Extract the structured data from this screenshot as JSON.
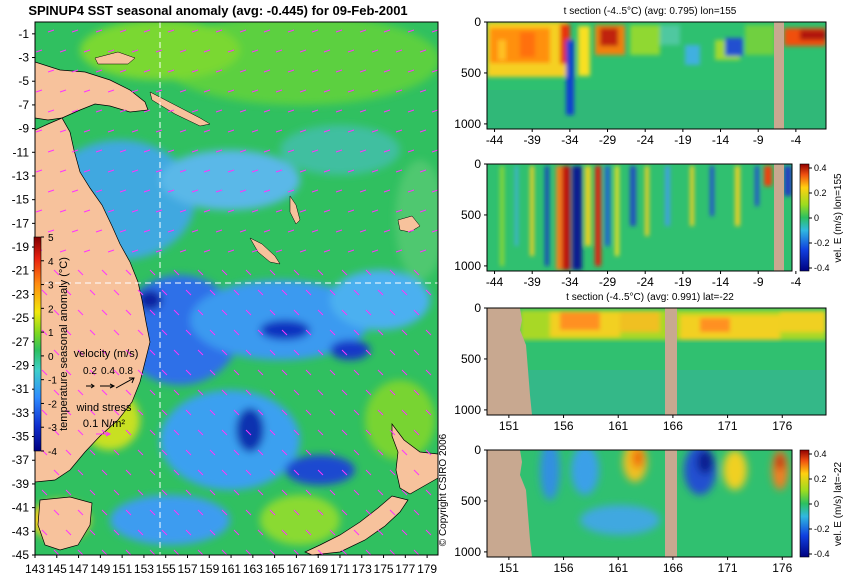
{
  "figure": {
    "copyright": "© Copyright CSIRO 2006"
  },
  "chart_data": [
    {
      "type": "heatmap",
      "id": "map",
      "title": "SPINUP4 SST seasonal anomaly (avg: -0.445) for 09-Feb-2001",
      "x_ticks": [
        "143",
        "145",
        "147",
        "149",
        "151",
        "153",
        "155",
        "157",
        "159",
        "161",
        "163",
        "165",
        "167",
        "169",
        "171",
        "173",
        "175",
        "177",
        "179"
      ],
      "y_ticks": [
        "-1",
        "-3",
        "-5",
        "-7",
        "-9",
        "-11",
        "-13",
        "-15",
        "-17",
        "-19",
        "-21",
        "-23",
        "-25",
        "-27",
        "-29",
        "-31",
        "-33",
        "-35",
        "-37",
        "-39",
        "-41",
        "-43",
        "-45"
      ],
      "xlim": [
        143,
        180
      ],
      "ylim": [
        -45,
        0
      ],
      "crosshair": {
        "lon": 155,
        "lat": -22
      },
      "colorbar": {
        "label": "temperature seasonal anomaly (°C)",
        "ticks": [
          "5",
          "4",
          "3",
          "2",
          "1",
          "0",
          "-1",
          "-2",
          "-3",
          "-4"
        ],
        "range": [
          -4,
          5
        ]
      },
      "velocity_legend": {
        "label": "velocity (m/s)",
        "values": [
          "0.2",
          "0.4",
          "0.8"
        ]
      },
      "wind_legend": {
        "label": "wind stress",
        "value": "0.1 N/m²"
      },
      "colors": {
        "land": "#F7C29C",
        "arrows": "#FF33FF",
        "crosshair": "#FFFFFF"
      }
    },
    {
      "type": "heatmap",
      "id": "section-t-lon",
      "title": "t section (-4..5°C) (avg: 0.795) lon=155",
      "x_ticks": [
        "-44",
        "-39",
        "-34",
        "-29",
        "-24",
        "-19",
        "-14",
        "-9",
        "-4"
      ],
      "y_ticks": [
        "0",
        "500",
        "1000"
      ],
      "xlim": [
        -45,
        0
      ],
      "ylim": [
        1050,
        0
      ]
    },
    {
      "type": "heatmap",
      "id": "section-v-lon",
      "title": "",
      "x_ticks": [
        "-44",
        "-39",
        "-34",
        "-29",
        "-24",
        "-19",
        "-14",
        "-9",
        "-4"
      ],
      "y_ticks": [
        "0",
        "500",
        "1000"
      ],
      "xlim": [
        -45,
        0
      ],
      "ylim": [
        1050,
        0
      ],
      "colorbar": {
        "label": "vel. E (m/s) lon=155",
        "ticks": [
          "0.4",
          "0.2",
          "0",
          "-0.2",
          "-0.4"
        ],
        "range": [
          -0.4,
          0.4
        ]
      }
    },
    {
      "type": "heatmap",
      "id": "section-t-lat",
      "title": "t section (-4..5°C) (avg: 0.991) lat=-22",
      "x_ticks": [
        "151",
        "156",
        "161",
        "166",
        "171",
        "176"
      ],
      "y_ticks": [
        "0",
        "500",
        "1000"
      ],
      "xlim": [
        149,
        180
      ],
      "ylim": [
        1050,
        0
      ]
    },
    {
      "type": "heatmap",
      "id": "section-v-lat",
      "title": "",
      "x_ticks": [
        "151",
        "156",
        "161",
        "166",
        "171",
        "176"
      ],
      "y_ticks": [
        "0",
        "500",
        "1000"
      ],
      "xlim": [
        149,
        180
      ],
      "ylim": [
        1050,
        0
      ],
      "colorbar": {
        "label": "vel. E (m/s) lat=-22",
        "ticks": [
          "0.4",
          "0.2",
          "0",
          "-0.2",
          "-0.4"
        ],
        "range": [
          -0.4,
          0.4
        ]
      }
    }
  ]
}
